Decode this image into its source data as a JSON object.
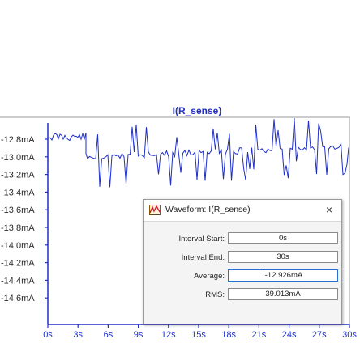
{
  "plot": {
    "trace_title": "I(R_sense)",
    "colors": {
      "trace": "#1f2fc8",
      "axis": "#1f2fc8",
      "grid_text": "#2a2a2a"
    },
    "y_tick_labels": [
      "-12.8mA",
      "-13.0mA",
      "-13.2mA",
      "-13.4mA",
      "-13.6mA",
      "-13.8mA",
      "-14.0mA",
      "-14.2mA",
      "-14.4mA",
      "-14.6mA"
    ],
    "x_tick_labels": [
      "0s",
      "3s",
      "6s",
      "9s",
      "12s",
      "15s",
      "18s",
      "21s",
      "24s",
      "27s",
      "30s"
    ]
  },
  "dialog": {
    "title": "Waveform: I(R_sense)",
    "icon": "waveform-ruler-icon",
    "close_label": "×",
    "interval_start_label": "Interval Start:",
    "interval_start_value": "0s",
    "interval_end_label": "Interval End:",
    "interval_end_value": "30s",
    "average_label": "Average:",
    "average_value": "-12.926mA",
    "rms_label": "RMS:",
    "rms_value": "39.013mA"
  }
}
